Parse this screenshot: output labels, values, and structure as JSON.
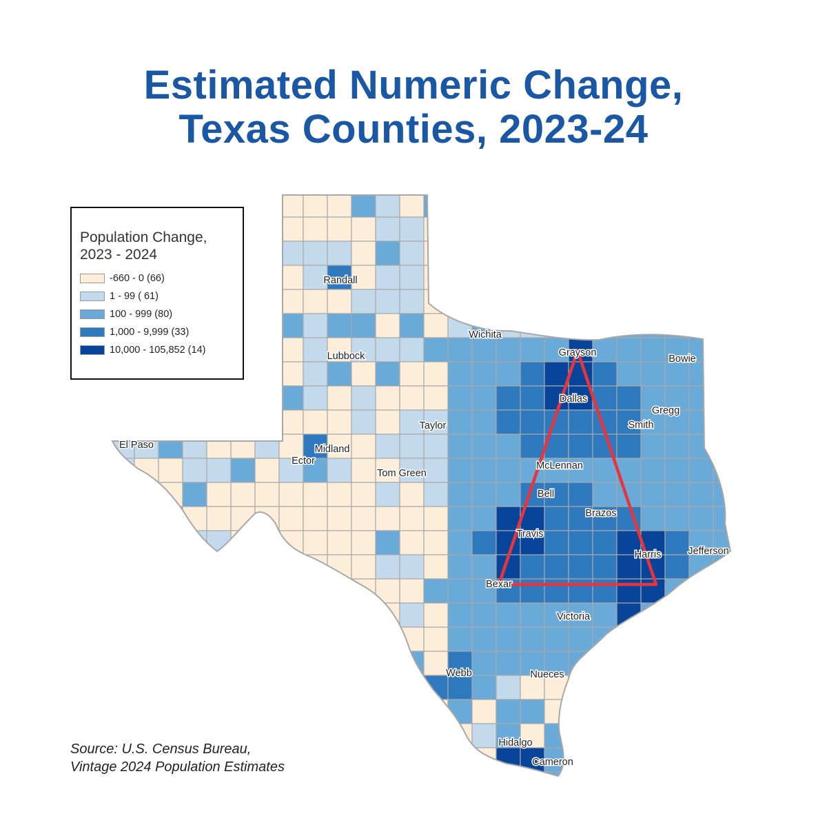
{
  "title": {
    "line1": "Estimated Numeric Change,",
    "line2": "Texas Counties, 2023-24"
  },
  "legend": {
    "title_line1": "Population Change,",
    "title_line2": "2023 - 2024",
    "items": [
      {
        "label": "-660 - 0 (66)",
        "color": "#fdeeda"
      },
      {
        "label": "1 - 99 ( 61)",
        "color": "#c3daed"
      },
      {
        "label": "100 - 999 (80)",
        "color": "#6aaad8"
      },
      {
        "label": "1,000 - 9,999 (33)",
        "color": "#2f79bf"
      },
      {
        "label": "10,000 - 105,852 (14)",
        "color": "#08459a"
      }
    ]
  },
  "counties": [
    {
      "name": "Randall"
    },
    {
      "name": "Wichita"
    },
    {
      "name": "Grayson"
    },
    {
      "name": "Bowie"
    },
    {
      "name": "Lubbock"
    },
    {
      "name": "Dallas"
    },
    {
      "name": "Gregg"
    },
    {
      "name": "Taylor"
    },
    {
      "name": "Smith"
    },
    {
      "name": "El Paso"
    },
    {
      "name": "Midland"
    },
    {
      "name": "Ector"
    },
    {
      "name": "McLennan"
    },
    {
      "name": "Tom Green"
    },
    {
      "name": "Bell"
    },
    {
      "name": "Brazos"
    },
    {
      "name": "Travis"
    },
    {
      "name": "Harris"
    },
    {
      "name": "Jefferson"
    },
    {
      "name": "Bexar"
    },
    {
      "name": "Victoria"
    },
    {
      "name": "Webb"
    },
    {
      "name": "Nueces"
    },
    {
      "name": "Hidalgo"
    },
    {
      "name": "Cameron"
    }
  ],
  "overlay": {
    "color": "#e8343c"
  },
  "source": {
    "line1": "Source: U.S. Census Bureau,",
    "line2": "Vintage 2024 Population Estimates"
  }
}
